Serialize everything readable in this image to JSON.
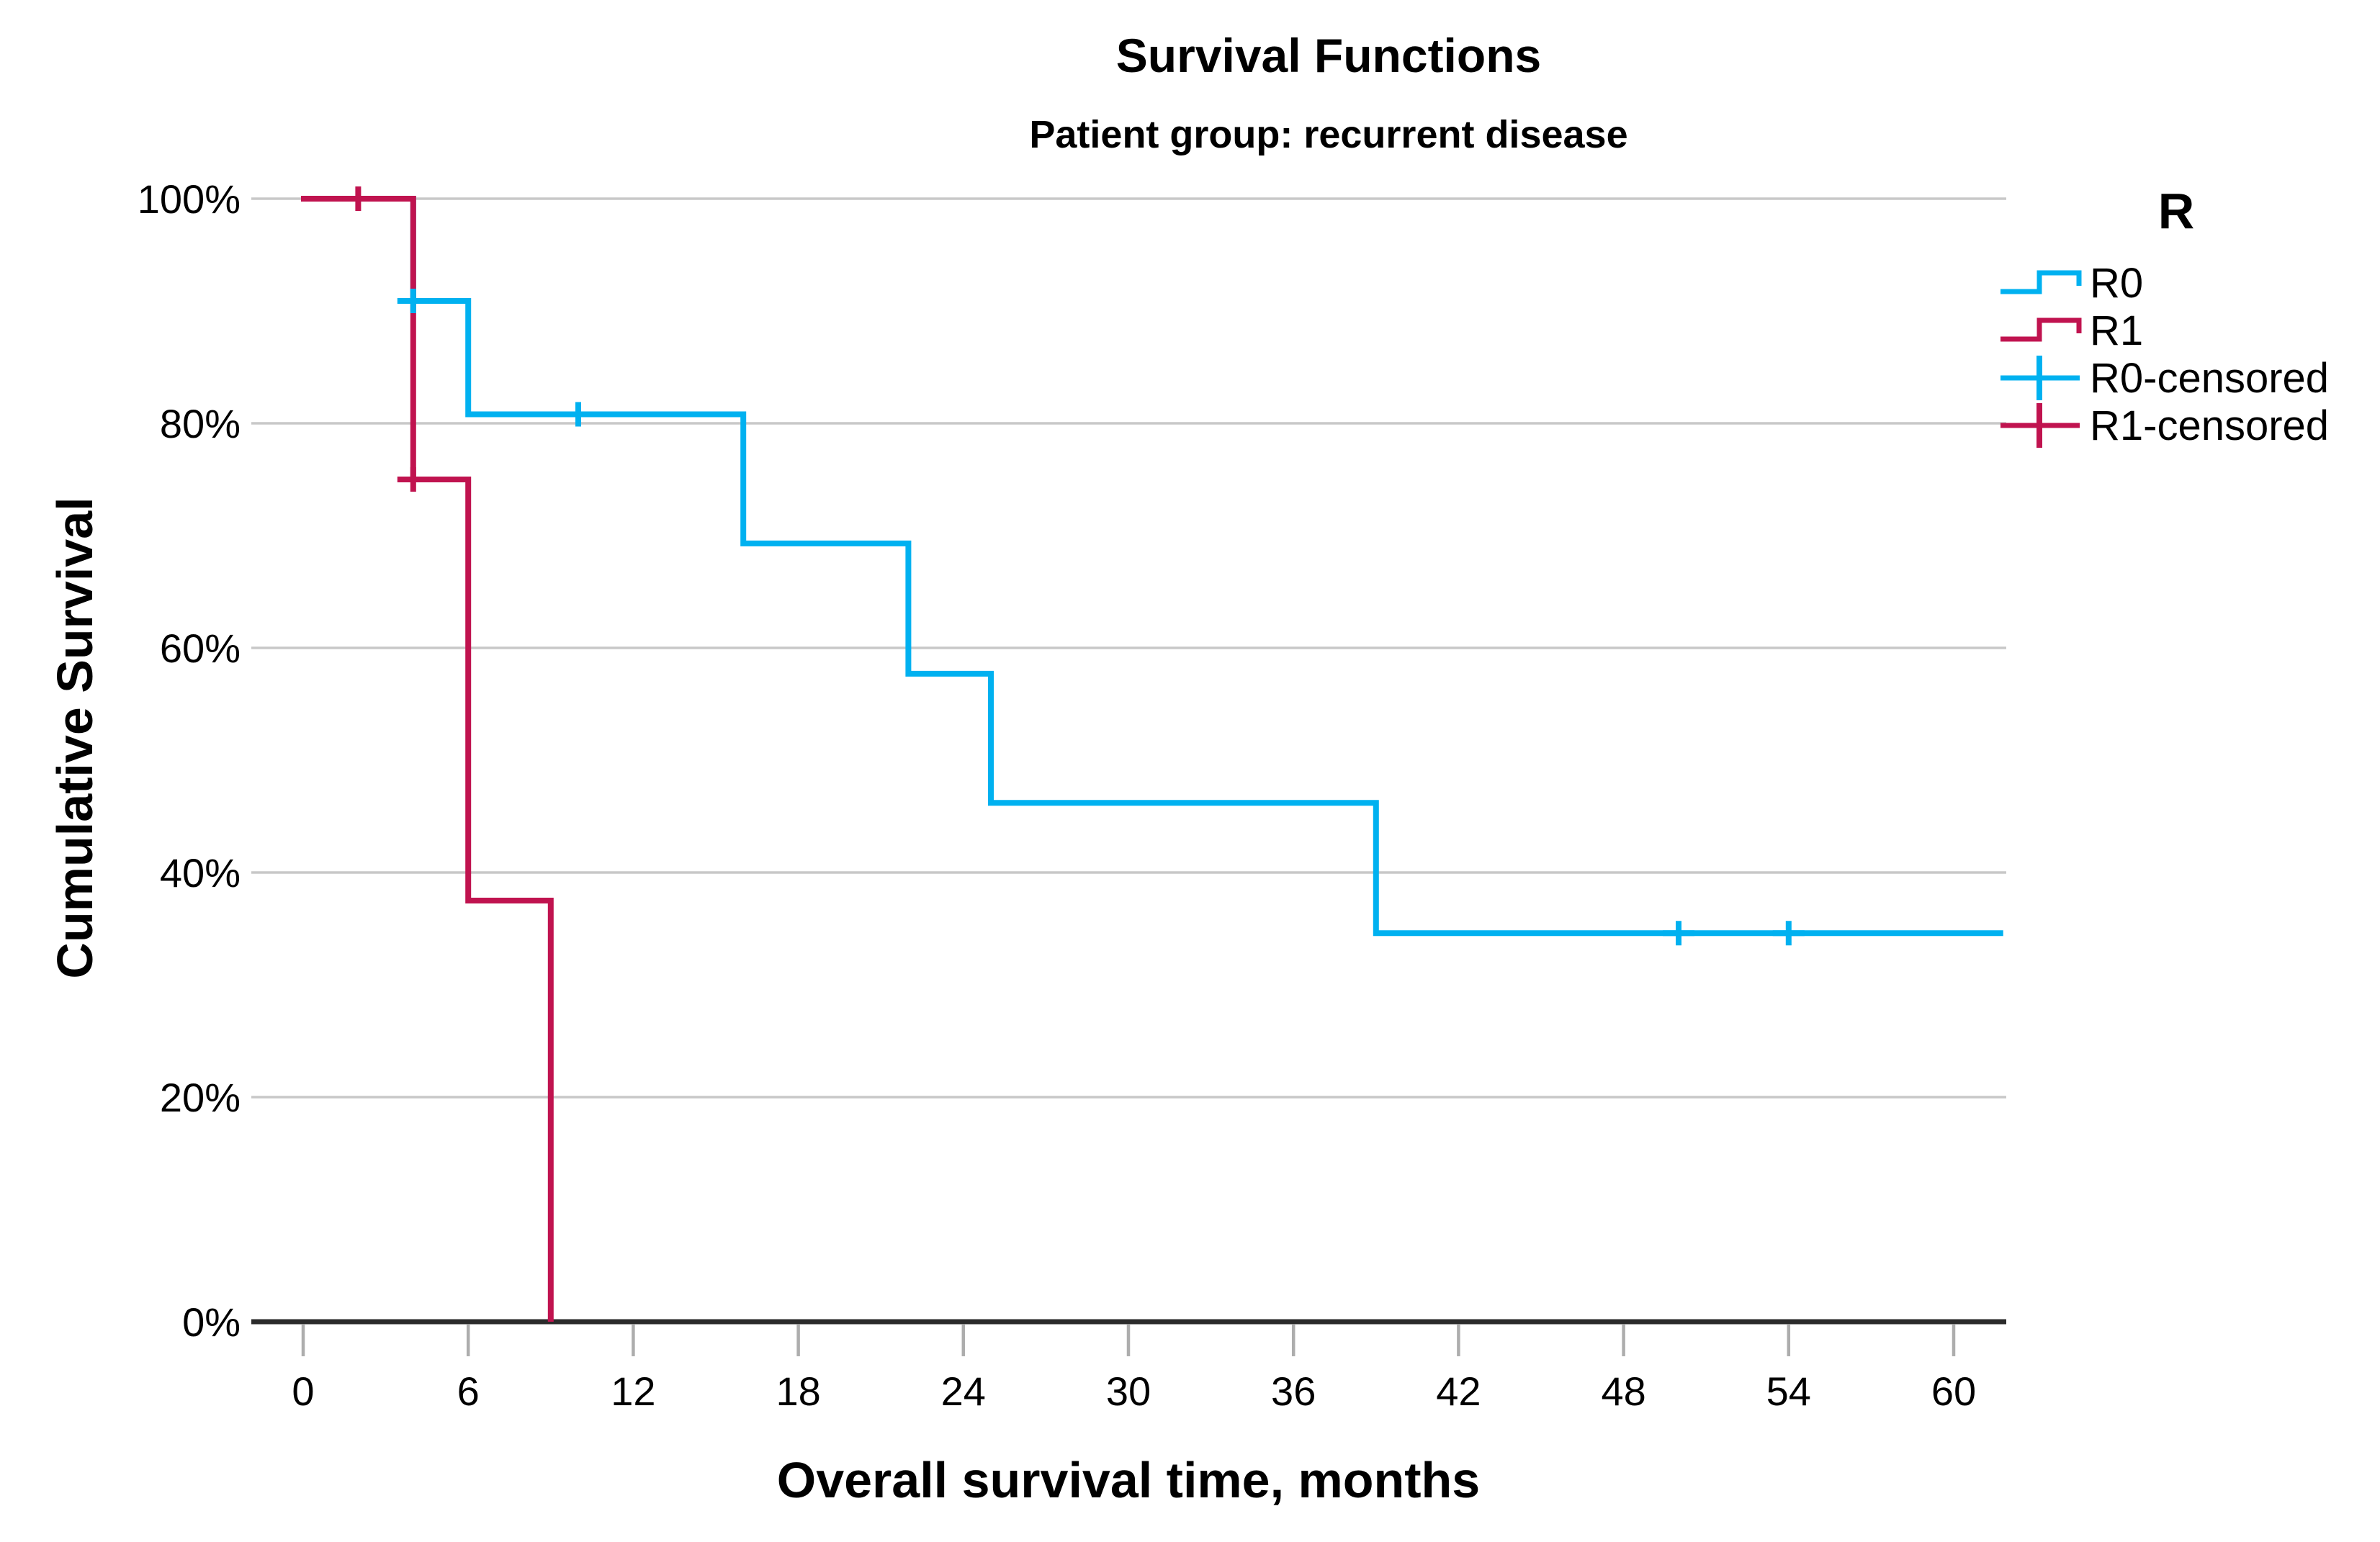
{
  "chart_data": {
    "type": "line",
    "variant": "kaplan_meier_step",
    "title": "Survival Functions",
    "subtitle": "Patient group: recurrent disease",
    "xlabel": "Overall survival time, months",
    "ylabel": "Cumulative Survival",
    "xlim": [
      0,
      62
    ],
    "ylim": [
      0,
      100
    ],
    "xticks": [
      0,
      6,
      12,
      18,
      24,
      30,
      36,
      42,
      48,
      54,
      60
    ],
    "yticks": [
      0,
      20,
      40,
      60,
      80,
      100
    ],
    "ytick_labels": [
      "0%",
      "20%",
      "40%",
      "60%",
      "80%",
      "100%"
    ],
    "grid": "horizontal",
    "legend_title": "R",
    "legend_position": "top-right-outside",
    "colors": {
      "grid": "#C8C8C8",
      "axis": "#2B2B2B",
      "tick_mark": "#ADADAD",
      "r0": "#00B1F0",
      "r1": "#C0134F"
    },
    "series": [
      {
        "name": "R0",
        "censored_label": "R0-censored",
        "color": "#00B1F0",
        "start": [
          0,
          100
        ],
        "drops": [
          [
            4,
            90.9
          ],
          [
            6,
            80.8
          ],
          [
            16,
            69.3
          ],
          [
            22,
            57.7
          ],
          [
            25,
            46.2
          ],
          [
            39,
            34.6
          ]
        ],
        "end_x": 61.8,
        "censored": [
          [
            4,
            90.9
          ],
          [
            10,
            80.8
          ],
          [
            50,
            34.6
          ],
          [
            54,
            34.6
          ]
        ]
      },
      {
        "name": "R1",
        "censored_label": "R1-censored",
        "color": "#C0134F",
        "start": [
          0,
          100
        ],
        "drops": [
          [
            4,
            75
          ],
          [
            6,
            37.5
          ],
          [
            9,
            0
          ]
        ],
        "end_x": 9,
        "censored": [
          [
            2,
            100
          ],
          [
            4,
            75
          ]
        ]
      }
    ]
  }
}
